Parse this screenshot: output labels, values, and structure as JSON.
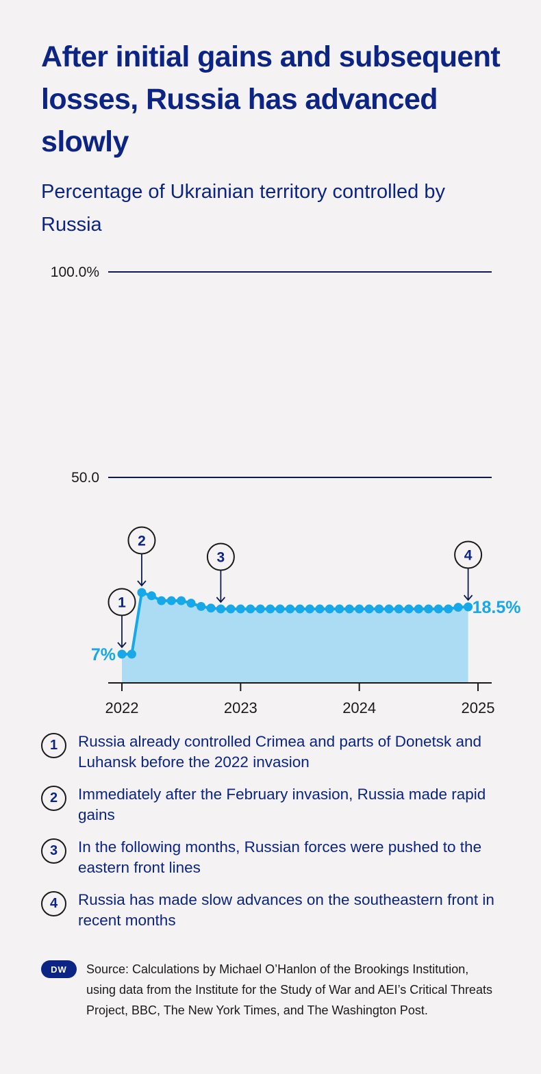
{
  "title": "After initial gains and subsequent losses, Russia has advanced slowly",
  "subtitle": "Percentage of Ukrainian territory controlled by Russia",
  "colors": {
    "text": "#0c2483",
    "line": "#16a8e8",
    "area": "#abdcf4",
    "axis": "#1a1a1a",
    "background": "#f4f2f3"
  },
  "chart_data": {
    "type": "area",
    "ylim": [
      0,
      100
    ],
    "xlim": [
      2022,
      2025
    ],
    "y_ticks": [
      {
        "value": 100,
        "label": "100.0%"
      },
      {
        "value": 50,
        "label": "50.0"
      }
    ],
    "x_ticks": [
      {
        "value": 2022,
        "label": "2022"
      },
      {
        "value": 2023,
        "label": "2023"
      },
      {
        "value": 2024,
        "label": "2024"
      },
      {
        "value": 2025,
        "label": "2025"
      }
    ],
    "series": [
      {
        "x": [
          2022.0,
          2022.083,
          2022.167,
          2022.25,
          2022.333,
          2022.417,
          2022.5,
          2022.583,
          2022.667,
          2022.75,
          2022.833,
          2022.917,
          2023.0,
          2023.083,
          2023.167,
          2023.25,
          2023.333,
          2023.417,
          2023.5,
          2023.583,
          2023.667,
          2023.75,
          2023.833,
          2023.917,
          2024.0,
          2024.083,
          2024.167,
          2024.25,
          2024.333,
          2024.417,
          2024.5,
          2024.583,
          2024.667,
          2024.75,
          2024.833,
          2024.917
        ],
        "y": [
          7,
          7,
          22,
          21.2,
          20,
          20,
          20,
          19.4,
          18.6,
          18.2,
          18,
          18,
          18,
          18,
          18,
          18,
          18,
          18,
          18,
          18,
          18,
          18,
          18,
          18,
          18,
          18,
          18,
          18,
          18,
          18,
          18,
          18,
          18,
          18,
          18.4,
          18.5
        ]
      }
    ],
    "value_labels": [
      {
        "text": "7%",
        "x": 2022.0,
        "y": 7,
        "side": "left"
      },
      {
        "text": "18.5%",
        "x": 2024.917,
        "y": 18.5,
        "side": "right"
      }
    ],
    "markers": [
      {
        "num": "1",
        "x": 2022.0,
        "y": 7
      },
      {
        "num": "2",
        "x": 2022.167,
        "y": 22
      },
      {
        "num": "3",
        "x": 2022.833,
        "y": 18
      },
      {
        "num": "4",
        "x": 2024.917,
        "y": 18.5
      }
    ]
  },
  "annotations": [
    {
      "num": "1",
      "text": "Russia already controlled Crimea and parts of Donetsk and Luhansk before the 2022 invasion"
    },
    {
      "num": "2",
      "text": "Immediately after the February invasion, Russia made rapid gains"
    },
    {
      "num": "3",
      "text": "In the following months, Russian forces were pushed to the eastern front lines"
    },
    {
      "num": "4",
      "text": "Russia has made slow advances on the southeastern front in recent months"
    }
  ],
  "source": {
    "logo_text": "DW",
    "text": "Source: Calculations by Michael O’Hanlon of the Brookings Institution, using data from the Institute for the Study of War and AEI’s Critical Threats Project, BBC, The New York Times, and The Washington Post."
  }
}
